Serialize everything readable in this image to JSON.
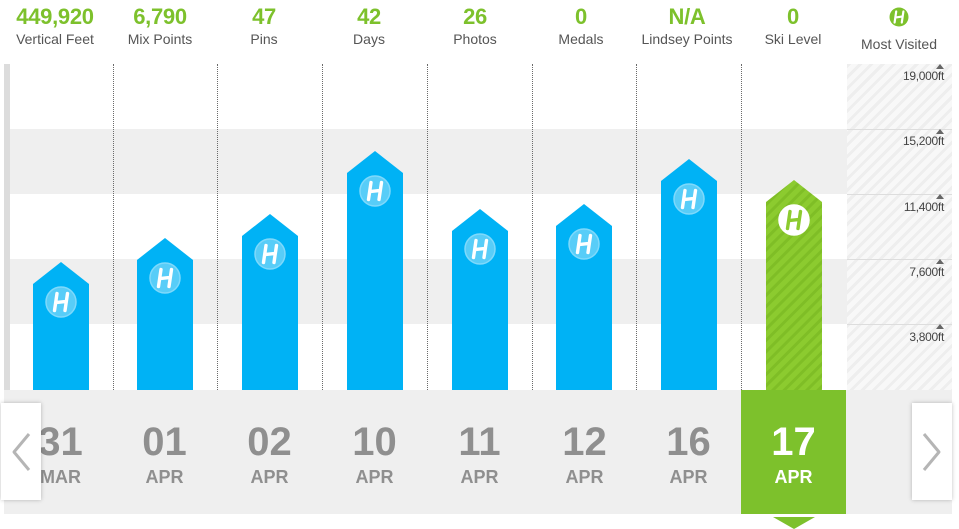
{
  "stats": [
    {
      "value": "449,920",
      "label": "Vertical Feet"
    },
    {
      "value": "6,790",
      "label": "Mix Points"
    },
    {
      "value": "47",
      "label": "Pins"
    },
    {
      "value": "42",
      "label": "Days"
    },
    {
      "value": "26",
      "label": "Photos"
    },
    {
      "value": "0",
      "label": "Medals"
    },
    {
      "value": "N/A",
      "label": "Lindsey Points"
    },
    {
      "value": "0",
      "label": "Ski Level"
    },
    {
      "value": "",
      "label": "Most Visited"
    }
  ],
  "chart_data": {
    "type": "bar",
    "categories": [
      "31 MAR",
      "01 APR",
      "02 APR",
      "10 APR",
      "11 APR",
      "12 APR",
      "16 APR",
      "17 APR"
    ],
    "values": [
      7500,
      8900,
      10300,
      14000,
      10600,
      10900,
      13500,
      12300
    ],
    "ylim": [
      0,
      19000
    ],
    "ticks": [
      "19,000ft",
      "15,200ft",
      "11,400ft",
      "7,600ft",
      "3,800ft"
    ],
    "tick_values": [
      19000,
      15200,
      11400,
      7600,
      3800
    ],
    "selected_index": 7,
    "grid": true
  },
  "dates": [
    {
      "day": "31",
      "month": "MAR"
    },
    {
      "day": "01",
      "month": "APR"
    },
    {
      "day": "02",
      "month": "APR"
    },
    {
      "day": "10",
      "month": "APR"
    },
    {
      "day": "11",
      "month": "APR"
    },
    {
      "day": "12",
      "month": "APR"
    },
    {
      "day": "16",
      "month": "APR"
    },
    {
      "day": "17",
      "month": "APR"
    }
  ],
  "colors": {
    "accent": "#7dc12c",
    "bar": "#00b2f5",
    "bar_selected": "#8ccb2f",
    "date_text": "#8f8f8f"
  },
  "icons": {
    "bar": "resort-logo-icon",
    "most_visited": "resort-logo-icon",
    "prev": "chevron-left-icon",
    "next": "chevron-right-icon"
  }
}
